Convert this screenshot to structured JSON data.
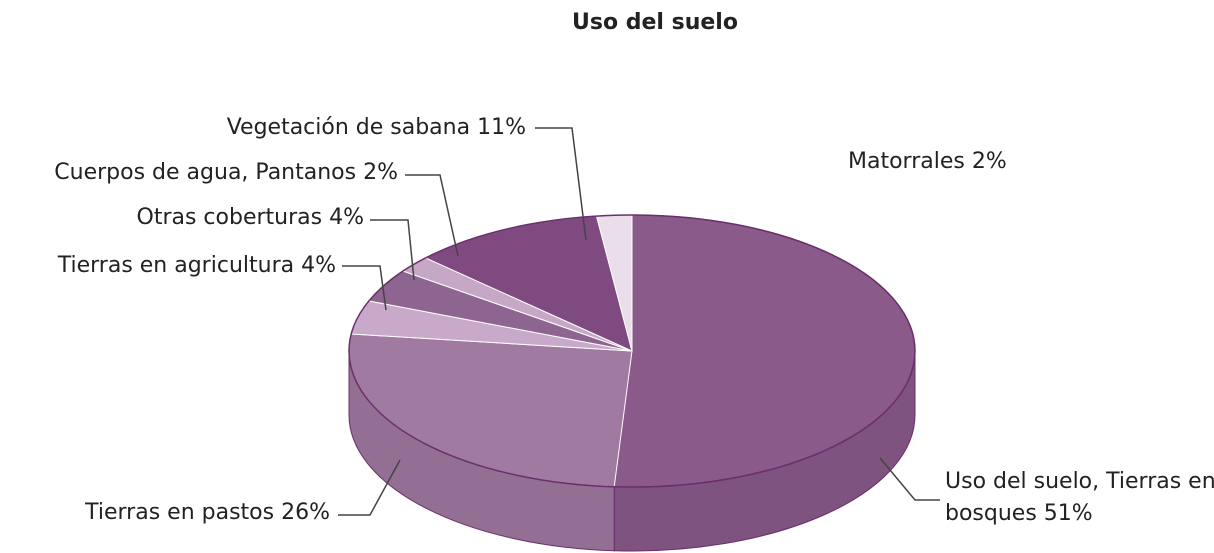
{
  "chart_data": {
    "type": "pie",
    "title": "Uso del suelo",
    "categories": [
      "Uso del suelo, Tierras en bosques",
      "Tierras en pastos",
      "Tierras en agricultura",
      "Otras coberturas",
      "Cuerpos de agua, Pantanos",
      "Vegetación de sabana",
      "Matorrales"
    ],
    "values": [
      51,
      26,
      4,
      4,
      2,
      11,
      2
    ],
    "value_labels": [
      "51%",
      "26%",
      "4%",
      "4%",
      "2%",
      "11%",
      "2%"
    ],
    "colors": [
      "#8a5a8a",
      "#a07aa0",
      "#c9a9c9",
      "#8e6490",
      "#c6a8c6",
      "#7f4a7f",
      "#ebdeeb"
    ]
  }
}
